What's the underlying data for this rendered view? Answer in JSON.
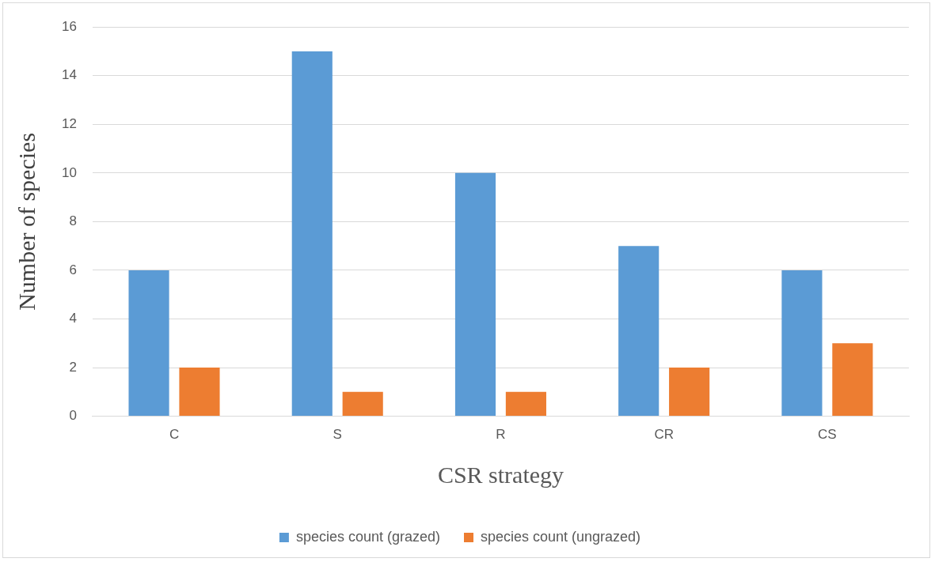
{
  "chart_data": {
    "type": "bar",
    "xlabel": "CSR strategy",
    "ylabel": "Number of species",
    "categories": [
      "C",
      "S",
      "R",
      "CR",
      "CS"
    ],
    "series": [
      {
        "name": "species count (grazed)",
        "color": "#5b9bd5",
        "values": [
          6,
          15,
          10,
          7,
          6
        ]
      },
      {
        "name": "species count (ungrazed)",
        "color": "#ed7d31",
        "values": [
          2,
          1,
          1,
          2,
          3
        ]
      }
    ],
    "ylim": [
      0,
      16
    ],
    "yticks": [
      0,
      2,
      4,
      6,
      8,
      10,
      12,
      14,
      16
    ],
    "grid": "y",
    "legend": "bottom"
  }
}
